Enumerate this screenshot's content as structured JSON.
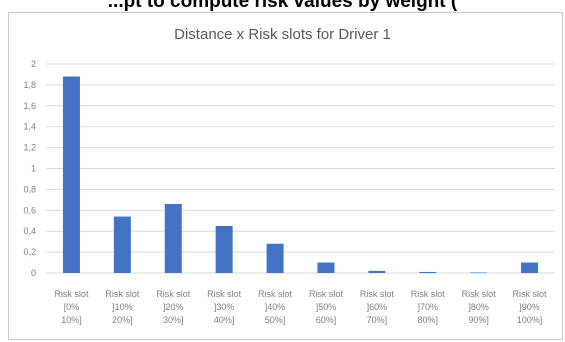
{
  "top_caption": "...pt to compute risk values by weight (",
  "chart_data": {
    "type": "bar",
    "title": "Distance x Risk slots for Driver 1",
    "categories": [
      [
        "Risk slot",
        "[0%",
        "10%]"
      ],
      [
        "Risk slot",
        "]10%",
        "20%]"
      ],
      [
        "Risk slot",
        "]20%",
        "30%]"
      ],
      [
        "Risk slot",
        "]30%",
        "40%]"
      ],
      [
        "Risk slot",
        "]40%",
        "50%]"
      ],
      [
        "Risk slot",
        "]50%",
        "60%]"
      ],
      [
        "Risk slot",
        "]60%",
        "70%]"
      ],
      [
        "Risk slot",
        "]70%",
        "80%]"
      ],
      [
        "Risk slot",
        "]80%",
        "90%]"
      ],
      [
        "Risk slot",
        "]90%",
        "100%]"
      ]
    ],
    "values": [
      1.88,
      0.54,
      0.66,
      0.45,
      0.28,
      0.1,
      0.02,
      0.01,
      0.005,
      0.1
    ],
    "ylim": [
      0,
      2
    ],
    "yticks": [
      "0",
      "0,2",
      "0,4",
      "0,6",
      "0,8",
      "1",
      "1,2",
      "1,4",
      "1,6",
      "1,8",
      "2"
    ],
    "grid": true,
    "bar_color": "#4472c4",
    "grid_color": "#d9d9d9"
  }
}
